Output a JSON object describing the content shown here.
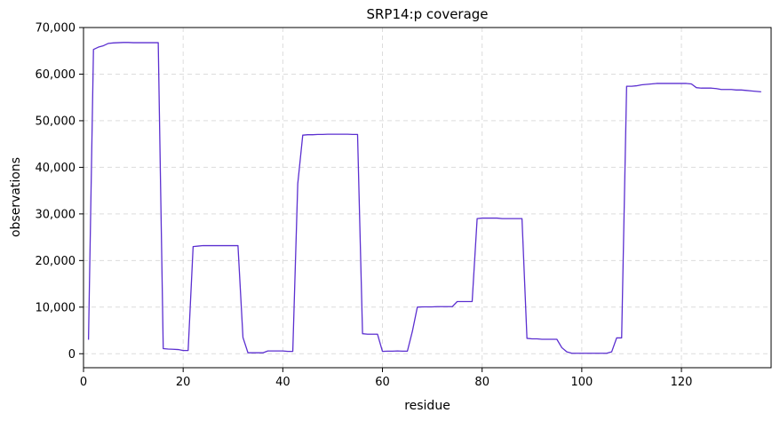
{
  "chart_data": {
    "type": "line",
    "title": "SRP14:p coverage",
    "xlabel": "residue",
    "ylabel": "observations",
    "xlim": [
      0,
      138
    ],
    "ylim": [
      -3000,
      70000
    ],
    "xticks": [
      0,
      20,
      40,
      60,
      80,
      100,
      120
    ],
    "yticks": [
      0,
      10000,
      20000,
      30000,
      40000,
      50000,
      60000,
      70000
    ],
    "ytick_labels": [
      "0",
      "10,000",
      "20,000",
      "30,000",
      "40,000",
      "50,000",
      "60,000",
      "70,000"
    ],
    "grid": true,
    "line_color": "#5b2fd0",
    "series": [
      {
        "x": [
          1,
          2,
          3,
          4,
          5,
          6,
          7,
          8,
          9,
          10,
          11,
          12,
          13,
          14,
          15,
          16,
          17,
          18,
          19,
          20,
          21,
          22,
          23,
          24,
          25,
          26,
          27,
          28,
          29,
          30,
          31,
          32,
          33,
          34,
          35,
          36,
          37,
          38,
          39,
          40,
          41,
          42,
          43,
          44,
          45,
          46,
          47,
          48,
          49,
          50,
          51,
          52,
          53,
          54,
          55,
          56,
          57,
          58,
          59,
          60,
          61,
          62,
          63,
          64,
          65,
          66,
          67,
          68,
          69,
          70,
          71,
          72,
          73,
          74,
          75,
          76,
          77,
          78,
          79,
          80,
          81,
          82,
          83,
          84,
          85,
          86,
          87,
          88,
          89,
          90,
          91,
          92,
          93,
          94,
          95,
          96,
          97,
          98,
          99,
          100,
          101,
          102,
          103,
          104,
          105,
          106,
          107,
          108,
          109,
          110,
          111,
          112,
          113,
          114,
          115,
          116,
          117,
          118,
          119,
          120,
          121,
          122,
          123,
          124,
          125,
          126,
          127,
          128,
          129,
          130,
          131,
          132,
          133,
          134,
          135,
          136
        ],
        "values": [
          3000,
          65300,
          65800,
          66100,
          66600,
          66700,
          66750,
          66800,
          66800,
          66750,
          66750,
          66750,
          66750,
          66750,
          66750,
          1100,
          1000,
          950,
          900,
          700,
          700,
          23000,
          23100,
          23200,
          23200,
          23200,
          23200,
          23200,
          23200,
          23200,
          23200,
          3500,
          200,
          200,
          200,
          200,
          600,
          600,
          600,
          600,
          500,
          500,
          36500,
          46900,
          47000,
          47000,
          47050,
          47050,
          47100,
          47100,
          47100,
          47100,
          47100,
          47050,
          47050,
          4300,
          4200,
          4200,
          4200,
          500,
          550,
          550,
          600,
          550,
          550,
          4800,
          10000,
          10050,
          10050,
          10050,
          10100,
          10100,
          10100,
          10100,
          11200,
          11200,
          11200,
          11200,
          29000,
          29100,
          29100,
          29100,
          29100,
          29000,
          29000,
          29000,
          29000,
          29000,
          3300,
          3200,
          3200,
          3100,
          3100,
          3100,
          3100,
          1300,
          400,
          100,
          100,
          100,
          100,
          100,
          100,
          100,
          100,
          400,
          3400,
          3400,
          57400,
          57400,
          57500,
          57700,
          57800,
          57900,
          58000,
          58000,
          58000,
          58000,
          58000,
          58000,
          58000,
          57900,
          57100,
          57000,
          57000,
          57000,
          56900,
          56700,
          56700,
          56700,
          56600,
          56600,
          56500,
          56400,
          56300,
          56200
        ]
      }
    ]
  }
}
